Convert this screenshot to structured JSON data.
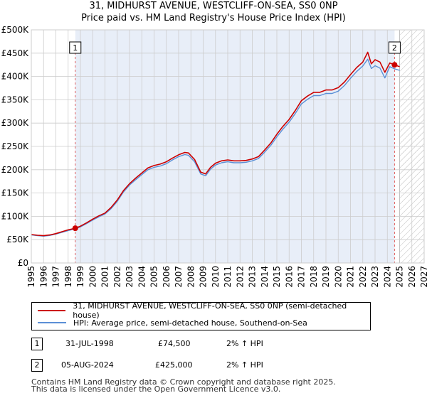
{
  "chart_data": {
    "type": "line",
    "title": "31, MIDHURST AVENUE, WESTCLIFF-ON-SEA, SS0 0NP",
    "subtitle": "Price paid vs. HM Land Registry's House Price Index (HPI)",
    "xlim": [
      1995,
      2027
    ],
    "ylim": [
      0,
      500000
    ],
    "x_ticks": [
      "1995",
      "1996",
      "1997",
      "1998",
      "1999",
      "2000",
      "2001",
      "2002",
      "2003",
      "2004",
      "2005",
      "2006",
      "2007",
      "2008",
      "2009",
      "2010",
      "2011",
      "2012",
      "2013",
      "2014",
      "2015",
      "2016",
      "2017",
      "2018",
      "2019",
      "2020",
      "2021",
      "2022",
      "2023",
      "2024",
      "2025",
      "2026",
      "2027"
    ],
    "y_ticks": [
      {
        "value": 0,
        "label": "£0"
      },
      {
        "value": 50000,
        "label": "£50K"
      },
      {
        "value": 100000,
        "label": "£100K"
      },
      {
        "value": 150000,
        "label": "£150K"
      },
      {
        "value": 200000,
        "label": "£200K"
      },
      {
        "value": 250000,
        "label": "£250K"
      },
      {
        "value": 300000,
        "label": "£300K"
      },
      {
        "value": 350000,
        "label": "£350K"
      },
      {
        "value": 400000,
        "label": "£400K"
      },
      {
        "value": 450000,
        "label": "£450K"
      },
      {
        "value": 500000,
        "label": "£500K"
      }
    ],
    "grid": true,
    "shaded_region": [
      1998.58,
      2024.59
    ],
    "future_hatch_start": 2025.0,
    "colors": {
      "property": "#cc0000",
      "hpi": "#5b8fd6",
      "shade": "#e8eef8",
      "grid": "#cccccc",
      "marker_line": "#e06060"
    },
    "series": [
      {
        "name": "31, MIDHURST AVENUE, WESTCLIFF-ON-SEA, SS0 0NP (semi-detached house)",
        "key": "property",
        "x": [
          1995.0,
          1995.5,
          1996.0,
          1996.5,
          1997.0,
          1997.5,
          1998.0,
          1998.58,
          1999.0,
          1999.5,
          2000.0,
          2000.5,
          2001.0,
          2001.5,
          2002.0,
          2002.5,
          2003.0,
          2003.5,
          2004.0,
          2004.5,
          2005.0,
          2005.5,
          2006.0,
          2006.5,
          2007.0,
          2007.5,
          2007.8,
          2008.3,
          2008.8,
          2009.2,
          2009.6,
          2010.0,
          2010.5,
          2011.0,
          2011.5,
          2012.0,
          2012.5,
          2013.0,
          2013.5,
          2014.0,
          2014.5,
          2015.0,
          2015.5,
          2016.0,
          2016.5,
          2017.0,
          2017.5,
          2018.0,
          2018.5,
          2019.0,
          2019.5,
          2020.0,
          2020.5,
          2021.0,
          2021.5,
          2022.0,
          2022.4,
          2022.7,
          2023.0,
          2023.4,
          2023.8,
          2024.2,
          2024.59,
          2024.9,
          2025.0
        ],
        "y": [
          61000,
          59500,
          58500,
          60000,
          63000,
          67000,
          71000,
          74500,
          79000,
          86000,
          94000,
          101000,
          107000,
          119000,
          135000,
          155000,
          170000,
          182000,
          193000,
          204000,
          209000,
          212000,
          217000,
          225000,
          232000,
          237000,
          236000,
          222000,
          195000,
          191000,
          205000,
          214000,
          219000,
          221000,
          219000,
          219000,
          220000,
          223000,
          228000,
          242000,
          257000,
          276000,
          293000,
          308000,
          327000,
          348000,
          358000,
          366000,
          366000,
          371000,
          371000,
          376000,
          388000,
          404000,
          419000,
          431000,
          452000,
          427000,
          436000,
          431000,
          409000,
          429000,
          425000,
          422000,
          421000
        ]
      },
      {
        "name": "HPI: Average price, semi-detached house, Southend-on-Sea",
        "key": "hpi",
        "x": [
          1995.0,
          1995.5,
          1996.0,
          1996.5,
          1997.0,
          1997.5,
          1998.0,
          1998.58,
          1999.0,
          1999.5,
          2000.0,
          2000.5,
          2001.0,
          2001.5,
          2002.0,
          2002.5,
          2003.0,
          2003.5,
          2004.0,
          2004.5,
          2005.0,
          2005.5,
          2006.0,
          2006.5,
          2007.0,
          2007.5,
          2007.8,
          2008.3,
          2008.8,
          2009.2,
          2009.6,
          2010.0,
          2010.5,
          2011.0,
          2011.5,
          2012.0,
          2012.5,
          2013.0,
          2013.5,
          2014.0,
          2014.5,
          2015.0,
          2015.5,
          2016.0,
          2016.5,
          2017.0,
          2017.5,
          2018.0,
          2018.5,
          2019.0,
          2019.5,
          2020.0,
          2020.5,
          2021.0,
          2021.5,
          2022.0,
          2022.4,
          2022.7,
          2023.0,
          2023.4,
          2023.8,
          2024.2,
          2024.59,
          2024.9,
          2025.0
        ],
        "y": [
          60000,
          58500,
          57500,
          59000,
          62000,
          65500,
          69500,
          73000,
          77500,
          84500,
          92000,
          99000,
          105000,
          116500,
          132000,
          152000,
          167000,
          178500,
          189500,
          200000,
          205000,
          208000,
          213000,
          221000,
          228000,
          232500,
          231000,
          217000,
          191000,
          187000,
          201000,
          210000,
          215000,
          217000,
          215000,
          215000,
          216000,
          219000,
          224000,
          237500,
          252000,
          270500,
          287000,
          302000,
          320500,
          341000,
          351000,
          359000,
          359000,
          363500,
          363500,
          368500,
          380500,
          396000,
          410500,
          422500,
          437000,
          417000,
          423000,
          418000,
          397000,
          421000,
          416500,
          414000,
          413000
        ]
      }
    ],
    "sales": [
      {
        "label": "1",
        "date": "31-JUL-1998",
        "x": 1998.58,
        "price_value": 74500,
        "price": "£74,500",
        "hpi_change": "2% ↑ HPI"
      },
      {
        "label": "2",
        "date": "05-AUG-2024",
        "x": 2024.59,
        "price_value": 425000,
        "price": "£425,000",
        "hpi_change": "2% ↑ HPI"
      }
    ]
  },
  "legend": {
    "property_label": "31, MIDHURST AVENUE, WESTCLIFF-ON-SEA, SS0 0NP (semi-detached house)",
    "hpi_label": "HPI: Average price, semi-detached house, Southend-on-Sea"
  },
  "footer": {
    "line1": "Contains HM Land Registry data © Crown copyright and database right 2025.",
    "line2": "This data is licensed under the Open Government Licence v3.0."
  }
}
